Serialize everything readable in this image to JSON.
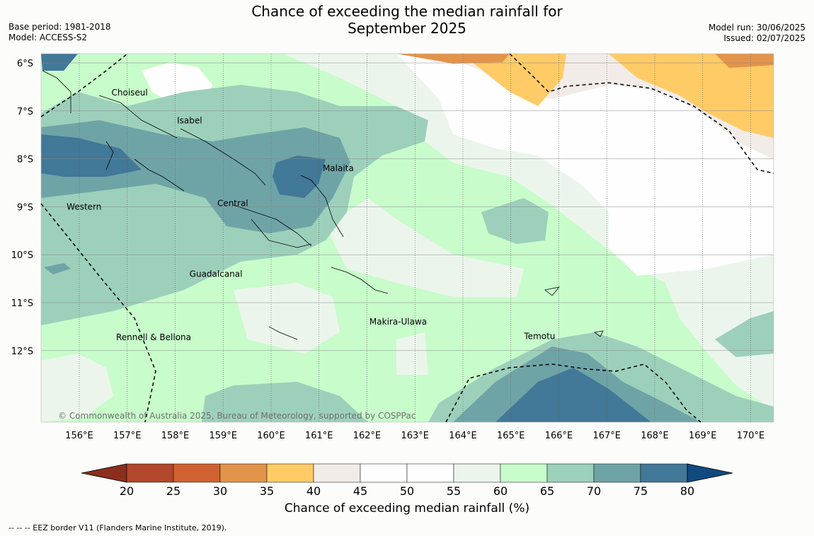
{
  "header": {
    "title": "Chance of exceeding the median rainfall for\nSeptember 2025",
    "base_period": "Base period: 1981-2018",
    "model": "Model: ACCESS-S2",
    "model_run": "Model run: 30/06/2025",
    "issued": "Issued: 02/07/2025"
  },
  "map": {
    "lat_labels": [
      "6°S",
      "7°S",
      "8°S",
      "9°S",
      "10°S",
      "11°S",
      "12°S"
    ],
    "lon_labels": [
      "156°E",
      "157°E",
      "158°E",
      "159°E",
      "160°E",
      "161°E",
      "162°E",
      "163°E",
      "164°E",
      "165°E",
      "166°E",
      "167°E",
      "168°E",
      "169°E",
      "170°E"
    ],
    "regions": [
      {
        "name": "Choiseul",
        "lon": 157.05,
        "lat": -6.62
      },
      {
        "name": "Isabel",
        "lon": 158.3,
        "lat": -7.2
      },
      {
        "name": "Malaita",
        "lon": 161.4,
        "lat": -8.2
      },
      {
        "name": "Western",
        "lon": 156.1,
        "lat": -9.0
      },
      {
        "name": "Central",
        "lon": 159.2,
        "lat": -8.93
      },
      {
        "name": "Guadalcanal",
        "lon": 158.85,
        "lat": -10.4
      },
      {
        "name": "Makira-Ulawa",
        "lon": 162.65,
        "lat": -11.4
      },
      {
        "name": "Rennell & Bellona",
        "lon": 157.55,
        "lat": -11.72
      },
      {
        "name": "Temotu",
        "lon": 165.6,
        "lat": -11.7
      }
    ],
    "copyright": "© Commonwealth of Australia 2025, Bureau of Meteorology, supported by COSPPac"
  },
  "colorbar": {
    "ticks": [
      "20",
      "25",
      "30",
      "35",
      "40",
      "45",
      "50",
      "55",
      "60",
      "65",
      "70",
      "75",
      "80"
    ],
    "colors": [
      "#8b2f1c",
      "#b2472b",
      "#cf6230",
      "#e3944a",
      "#fecb66",
      "#f2ece8",
      "#fdfefd",
      "#fdfefd",
      "#ecf5ec",
      "#c8fccb",
      "#9dd0bb",
      "#6fa4a7",
      "#427898",
      "#114a7f"
    ],
    "label": "Chance of exceeding median rainfall (%)"
  },
  "footer": {
    "eez_note": "--  --  -- EEZ border V11 (Flanders Marine Institute, 2019)."
  }
}
